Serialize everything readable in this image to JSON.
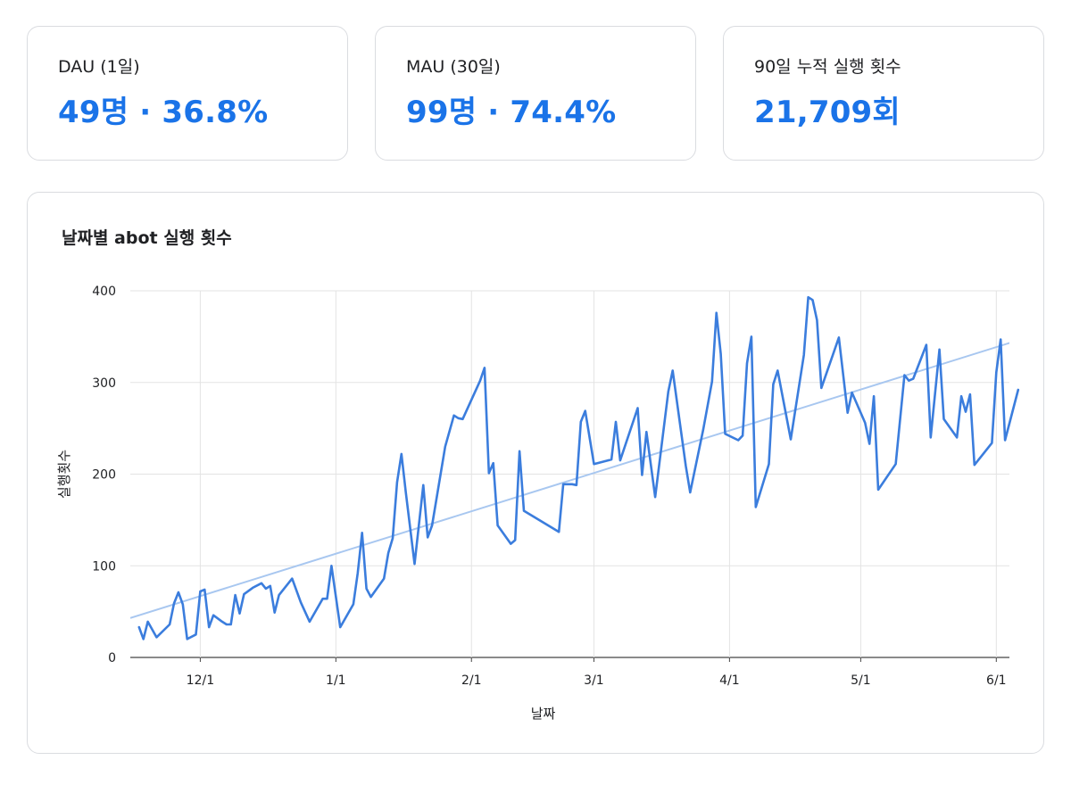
{
  "stats": [
    {
      "label": "DAU (1일)",
      "value": "49명 · 36.8%"
    },
    {
      "label": "MAU (30일)",
      "value": "99명 · 74.4%"
    },
    {
      "label": "90일 누적 실행 횟수",
      "value": "21,709회"
    }
  ],
  "colors": {
    "line": "#3b7ddd",
    "trend": "#a8c7f0",
    "grid": "#e3e3e3",
    "accent": "#1a73e8"
  },
  "chart_data": {
    "type": "line",
    "title": "날짜별 abot 실행 횟수",
    "xlabel": "날짜",
    "ylabel": "실행횟수",
    "ylim": [
      0,
      400
    ],
    "yticks": [
      0,
      100,
      200,
      300,
      400
    ],
    "xlim": [
      "2024-11-15",
      "2025-06-04"
    ],
    "xticks": [
      {
        "date": "2024-12-01",
        "label": "12/1"
      },
      {
        "date": "2025-01-01",
        "label": "1/1"
      },
      {
        "date": "2025-02-01",
        "label": "2/1"
      },
      {
        "date": "2025-03-01",
        "label": "3/1"
      },
      {
        "date": "2025-04-01",
        "label": "4/1"
      },
      {
        "date": "2025-05-01",
        "label": "5/1"
      },
      {
        "date": "2025-06-01",
        "label": "6/1"
      }
    ],
    "grid": true,
    "series": [
      {
        "type": "line",
        "points": [
          [
            "2024-11-17",
            33
          ],
          [
            "2024-11-18",
            20
          ],
          [
            "2024-11-19",
            39
          ],
          [
            "2024-11-21",
            22
          ],
          [
            "2024-11-24",
            36
          ],
          [
            "2024-11-25",
            59
          ],
          [
            "2024-11-26",
            71
          ],
          [
            "2024-11-27",
            58
          ],
          [
            "2024-11-28",
            20
          ],
          [
            "2024-11-30",
            25
          ],
          [
            "2024-12-01",
            72
          ],
          [
            "2024-12-02",
            74
          ],
          [
            "2024-12-03",
            33
          ],
          [
            "2024-12-04",
            46
          ],
          [
            "2024-12-06",
            39
          ],
          [
            "2024-12-07",
            36
          ],
          [
            "2024-12-08",
            36
          ],
          [
            "2024-12-09",
            68
          ],
          [
            "2024-12-10",
            48
          ],
          [
            "2024-12-11",
            69
          ],
          [
            "2024-12-13",
            76
          ],
          [
            "2024-12-15",
            81
          ],
          [
            "2024-12-16",
            75
          ],
          [
            "2024-12-17",
            78
          ],
          [
            "2024-12-18",
            49
          ],
          [
            "2024-12-19",
            68
          ],
          [
            "2024-12-22",
            86
          ],
          [
            "2024-12-24",
            60
          ],
          [
            "2024-12-26",
            39
          ],
          [
            "2024-12-29",
            64
          ],
          [
            "2024-12-30",
            64
          ],
          [
            "2024-12-31",
            100
          ],
          [
            "2025-01-02",
            33
          ],
          [
            "2025-01-05",
            58
          ],
          [
            "2025-01-06",
            92
          ],
          [
            "2025-01-07",
            136
          ],
          [
            "2025-01-08",
            75
          ],
          [
            "2025-01-09",
            66
          ],
          [
            "2025-01-12",
            86
          ],
          [
            "2025-01-13",
            114
          ],
          [
            "2025-01-14",
            130
          ],
          [
            "2025-01-15",
            191
          ],
          [
            "2025-01-16",
            222
          ],
          [
            "2025-01-17",
            180
          ],
          [
            "2025-01-19",
            102
          ],
          [
            "2025-01-20",
            145
          ],
          [
            "2025-01-21",
            188
          ],
          [
            "2025-01-22",
            131
          ],
          [
            "2025-01-23",
            144
          ],
          [
            "2025-01-26",
            230
          ],
          [
            "2025-01-28",
            264
          ],
          [
            "2025-01-29",
            261
          ],
          [
            "2025-01-30",
            260
          ],
          [
            "2025-02-03",
            302
          ],
          [
            "2025-02-04",
            316
          ],
          [
            "2025-02-05",
            201
          ],
          [
            "2025-02-06",
            212
          ],
          [
            "2025-02-07",
            144
          ],
          [
            "2025-02-10",
            124
          ],
          [
            "2025-02-11",
            128
          ],
          [
            "2025-02-12",
            225
          ],
          [
            "2025-02-13",
            160
          ],
          [
            "2025-02-21",
            137
          ],
          [
            "2025-02-22",
            189
          ],
          [
            "2025-02-24",
            189
          ],
          [
            "2025-02-25",
            188
          ],
          [
            "2025-02-26",
            257
          ],
          [
            "2025-02-27",
            269
          ],
          [
            "2025-03-01",
            211
          ],
          [
            "2025-03-05",
            216
          ],
          [
            "2025-03-06",
            257
          ],
          [
            "2025-03-07",
            215
          ],
          [
            "2025-03-11",
            272
          ],
          [
            "2025-03-12",
            199
          ],
          [
            "2025-03-13",
            246
          ],
          [
            "2025-03-15",
            175
          ],
          [
            "2025-03-18",
            290
          ],
          [
            "2025-03-19",
            313
          ],
          [
            "2025-03-22",
            209
          ],
          [
            "2025-03-23",
            180
          ],
          [
            "2025-03-26",
            249
          ],
          [
            "2025-03-28",
            301
          ],
          [
            "2025-03-29",
            376
          ],
          [
            "2025-03-30",
            331
          ],
          [
            "2025-03-31",
            244
          ],
          [
            "2025-04-03",
            237
          ],
          [
            "2025-04-04",
            242
          ],
          [
            "2025-04-05",
            321
          ],
          [
            "2025-04-06",
            350
          ],
          [
            "2025-04-07",
            164
          ],
          [
            "2025-04-10",
            211
          ],
          [
            "2025-04-11",
            298
          ],
          [
            "2025-04-12",
            313
          ],
          [
            "2025-04-15",
            238
          ],
          [
            "2025-04-18",
            330
          ],
          [
            "2025-04-19",
            393
          ],
          [
            "2025-04-20",
            390
          ],
          [
            "2025-04-21",
            368
          ],
          [
            "2025-04-22",
            294
          ],
          [
            "2025-04-26",
            349
          ],
          [
            "2025-04-28",
            267
          ],
          [
            "2025-04-29",
            289
          ],
          [
            "2025-05-02",
            256
          ],
          [
            "2025-05-03",
            233
          ],
          [
            "2025-05-04",
            285
          ],
          [
            "2025-05-05",
            183
          ],
          [
            "2025-05-09",
            211
          ],
          [
            "2025-05-11",
            308
          ],
          [
            "2025-05-12",
            302
          ],
          [
            "2025-05-13",
            304
          ],
          [
            "2025-05-16",
            341
          ],
          [
            "2025-05-17",
            240
          ],
          [
            "2025-05-19",
            336
          ],
          [
            "2025-05-20",
            260
          ],
          [
            "2025-05-23",
            240
          ],
          [
            "2025-05-24",
            285
          ],
          [
            "2025-05-25",
            268
          ],
          [
            "2025-05-26",
            287
          ],
          [
            "2025-05-27",
            210
          ],
          [
            "2025-05-31",
            234
          ],
          [
            "2025-06-01",
            311
          ],
          [
            "2025-06-02",
            347
          ],
          [
            "2025-06-03",
            237
          ],
          [
            "2025-06-06",
            292
          ]
        ]
      },
      {
        "type": "trend",
        "points": [
          [
            "2024-11-15",
            43
          ],
          [
            "2025-06-10",
            352
          ]
        ]
      }
    ]
  }
}
